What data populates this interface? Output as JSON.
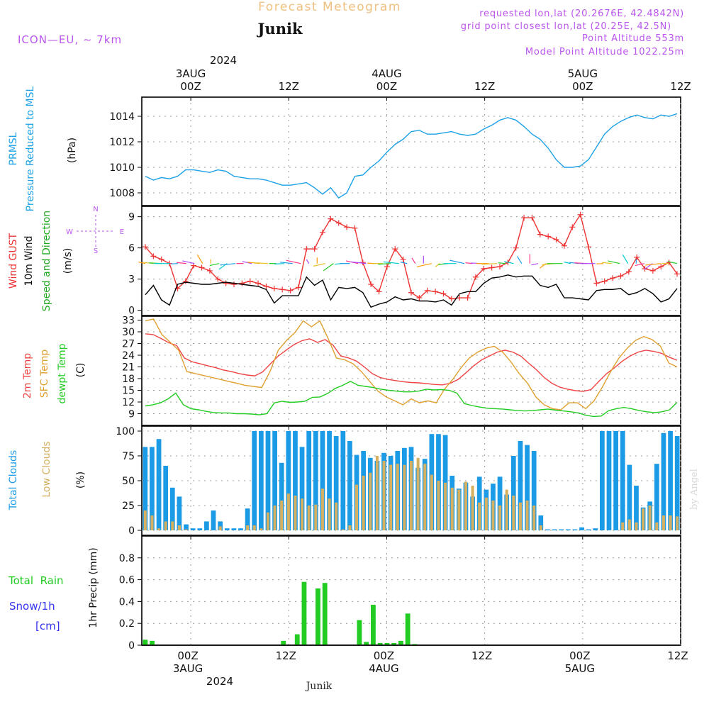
{
  "header": {
    "title": "Forecast Meteogram",
    "location": "Junik",
    "model": "ICON—EU, ~ 7km",
    "requested": "requested lon,lat (20.2676E, 42.4842N)",
    "grid_point": "grid point closest lon,lat (20.25E, 42.5N)",
    "point_altitude": "Point Altitude 553m",
    "model_altitude": "Model Point Altitude 1022.25m",
    "credit": "by Angel",
    "footer_location": "Junik"
  },
  "time_axis": {
    "hours_total": 66,
    "top_year": "2024",
    "bottom_year": "2024",
    "ticks": [
      {
        "hour": 6,
        "label": "00Z",
        "date": "3AUG"
      },
      {
        "hour": 18,
        "label": "12Z",
        "date": ""
      },
      {
        "hour": 30,
        "label": "00Z",
        "date": "4AUG"
      },
      {
        "hour": 42,
        "label": "12Z",
        "date": ""
      },
      {
        "hour": 54,
        "label": "00Z",
        "date": "5AUG"
      },
      {
        "hour": 66,
        "label": "12Z",
        "date": ""
      }
    ]
  },
  "colors": {
    "pressure": "#1da1e6",
    "gust": "#ee3333",
    "wind": "#000000",
    "temp": "#ee4444",
    "sfc": "#e0a030",
    "dewpt": "#22cc22",
    "total_clouds": "#1b9ae6",
    "low_clouds": "#d4b060",
    "rain": "#22cc22",
    "snow": "#3333ee",
    "accent": "#bb55ee",
    "title": "#f0c080"
  },
  "chart_data": [
    {
      "type": "line",
      "panel": "pressure",
      "ylabel_lines": [
        "PRMSL",
        "Pressure Reduced to MSL"
      ],
      "unit": "(hPa)",
      "ylim": [
        1007,
        1015.5
      ],
      "yticks": [
        1008,
        1010,
        1012,
        1014
      ],
      "series": [
        {
          "name": "PRMSL",
          "values": [
            1009.3,
            1009.0,
            1009.2,
            1009.1,
            1009.3,
            1009.8,
            1009.8,
            1009.7,
            1009.6,
            1009.8,
            1009.7,
            1009.3,
            1009.2,
            1009.1,
            1009.1,
            1009.0,
            1008.8,
            1008.6,
            1008.6,
            1008.7,
            1008.8,
            1008.4,
            1007.9,
            1008.4,
            1007.6,
            1008.0,
            1009.3,
            1009.4,
            1010.0,
            1010.5,
            1011.2,
            1011.8,
            1012.2,
            1012.8,
            1012.9,
            1012.6,
            1012.6,
            1012.7,
            1012.8,
            1012.6,
            1012.5,
            1012.6,
            1013.0,
            1013.3,
            1013.7,
            1013.9,
            1013.7,
            1013.2,
            1012.6,
            1012.2,
            1011.5,
            1010.6,
            1010.0,
            1010.0,
            1010.1,
            1010.6,
            1011.6,
            1012.6,
            1013.2,
            1013.6,
            1013.9,
            1014.1,
            1013.9,
            1013.8,
            1014.1,
            1014.0,
            1014.2
          ]
        }
      ]
    },
    {
      "type": "line",
      "panel": "wind",
      "ylabel_lines": [
        "Wind GUST",
        "10m Wind",
        "Speed and Direction"
      ],
      "unit": "(m/s)",
      "compass": {
        "n": "N",
        "s": "S",
        "w": "W",
        "e": "E"
      },
      "ylim": [
        -0.5,
        10
      ],
      "yticks": [
        0,
        3,
        6,
        9
      ],
      "series": [
        {
          "name": "Wind GUST",
          "values": [
            6.1,
            5.2,
            4.9,
            4.5,
            2.1,
            2.8,
            4.3,
            4.1,
            3.8,
            3.0,
            2.6,
            2.5,
            2.6,
            2.8,
            2.6,
            2.3,
            2.1,
            2.0,
            1.9,
            2.2,
            5.9,
            5.9,
            7.5,
            8.8,
            8.4,
            8.0,
            7.9,
            4.6,
            2.5,
            1.8,
            4.2,
            5.9,
            4.9,
            1.7,
            1.2,
            1.9,
            1.8,
            1.6,
            1.1,
            1.2,
            1.2,
            3.2,
            4.0,
            4.1,
            4.2,
            4.6,
            6.0,
            8.9,
            8.9,
            7.3,
            7.1,
            6.8,
            6.2,
            8.0,
            9.2,
            6.1,
            2.6,
            2.8,
            3.1,
            3.3,
            3.7,
            5.1,
            4.0,
            3.8,
            4.2,
            4.6,
            3.5
          ]
        },
        {
          "name": "10m Wind",
          "values": [
            1.5,
            2.4,
            1.0,
            0.5,
            2.5,
            2.7,
            2.6,
            2.5,
            2.5,
            2.6,
            2.7,
            2.6,
            2.5,
            2.4,
            2.3,
            2.0,
            0.7,
            1.4,
            1.4,
            1.4,
            3.2,
            2.4,
            2.9,
            1.0,
            2.2,
            2.1,
            2.2,
            1.7,
            0.3,
            0.6,
            0.8,
            1.3,
            1.0,
            1.1,
            0.9,
            0.9,
            0.8,
            1.0,
            0.5,
            1.6,
            1.8,
            1.8,
            2.6,
            3.1,
            3.2,
            3.4,
            3.2,
            3.3,
            3.3,
            2.4,
            2.2,
            2.5,
            1.2,
            1.2,
            1.1,
            1.0,
            1.9,
            2.0,
            2.0,
            2.1,
            1.5,
            1.7,
            2.1,
            1.6,
            0.8,
            1.1,
            2.1
          ]
        }
      ]
    },
    {
      "type": "line",
      "panel": "temperature",
      "ylabel_lines": [
        "2m Temp",
        "SFC Temp",
        "dewpt Temp"
      ],
      "unit": "(C)",
      "ylim": [
        6,
        34
      ],
      "yticks": [
        9,
        12,
        15,
        18,
        21,
        24,
        27,
        30,
        33
      ],
      "series": [
        {
          "name": "2m Temp",
          "values": [
            29.5,
            29.3,
            28.3,
            27.2,
            26.5,
            23.3,
            22.3,
            21.8,
            21.3,
            20.8,
            20.2,
            19.8,
            19.3,
            18.9,
            18.7,
            19.7,
            21.8,
            23.8,
            25.3,
            26.7,
            27.7,
            28.2,
            27.3,
            28.0,
            26.6,
            23.8,
            23.3,
            22.5,
            21.0,
            19.3,
            18.3,
            17.8,
            17.5,
            17.2,
            17.0,
            16.9,
            16.7,
            16.5,
            16.4,
            16.8,
            17.8,
            19.5,
            21.3,
            22.8,
            23.8,
            24.8,
            25.3,
            24.8,
            23.8,
            22.0,
            20.3,
            18.3,
            16.8,
            15.8,
            15.3,
            14.9,
            14.7,
            15.2,
            17.3,
            19.3,
            20.8,
            22.5,
            23.8,
            24.8,
            25.3,
            25.0,
            24.5,
            23.5,
            22.7
          ]
        },
        {
          "name": "SFC Temp",
          "values": [
            32.8,
            33.3,
            29.3,
            27.3,
            25.3,
            19.8,
            19.3,
            18.8,
            18.3,
            17.8,
            17.3,
            16.8,
            16.3,
            16.0,
            15.7,
            19.8,
            25.3,
            27.8,
            29.8,
            32.8,
            31.3,
            32.8,
            28.3,
            23.3,
            22.8,
            21.8,
            19.8,
            17.3,
            14.8,
            13.3,
            12.3,
            11.3,
            12.8,
            11.8,
            12.3,
            11.8,
            15.3,
            17.8,
            20.8,
            23.3,
            24.8,
            25.8,
            26.3,
            24.8,
            22.3,
            19.3,
            16.8,
            13.3,
            11.3,
            10.3,
            10.0,
            11.8,
            11.8,
            10.3,
            12.3,
            15.8,
            19.8,
            23.3,
            25.8,
            27.8,
            28.8,
            28.0,
            26.3,
            22.0,
            21.0
          ]
        },
        {
          "name": "dewpt Temp",
          "values": [
            11.0,
            11.3,
            11.8,
            12.8,
            14.3,
            11.3,
            10.3,
            10.0,
            9.6,
            9.3,
            9.2,
            9.2,
            9.0,
            9.0,
            8.9,
            8.7,
            9.0,
            11.8,
            12.2,
            11.9,
            12.0,
            12.2,
            13.2,
            13.3,
            14.2,
            15.5,
            16.3,
            17.3,
            16.3,
            16.0,
            15.7,
            15.3,
            15.0,
            14.8,
            14.6,
            14.6,
            14.8,
            15.3,
            15.1,
            15.2,
            15.0,
            14.3,
            11.6,
            11.1,
            10.7,
            10.4,
            10.3,
            10.2,
            10.0,
            9.8,
            9.7,
            9.8,
            10.0,
            10.2,
            9.9,
            9.7,
            9.5,
            9.2,
            8.6,
            8.3,
            8.4,
            9.8,
            10.3,
            10.6,
            10.3,
            9.8,
            9.5,
            9.3,
            9.5,
            10.0,
            11.9
          ]
        }
      ]
    },
    {
      "type": "bar",
      "panel": "clouds",
      "ylabel_lines": [
        "Total Clouds",
        "Low Clouds"
      ],
      "unit": "(%)",
      "ylim": [
        -5,
        105
      ],
      "yticks": [
        0,
        25,
        50,
        75,
        100
      ],
      "series": [
        {
          "name": "Total Clouds",
          "values": [
            84,
            84,
            92,
            65,
            43,
            34,
            6,
            2,
            2,
            9,
            20,
            9,
            2,
            2,
            2,
            22,
            100,
            100,
            100,
            100,
            68,
            100,
            100,
            84,
            100,
            100,
            100,
            100,
            95,
            100,
            90,
            76,
            80,
            73,
            70,
            78,
            75,
            80,
            83,
            84,
            63,
            72,
            97,
            97,
            96,
            55,
            42,
            48,
            34,
            54,
            41,
            47,
            54,
            36,
            75,
            90,
            86,
            80,
            15,
            1,
            1,
            1,
            1,
            1,
            3,
            1,
            2,
            100,
            100,
            100,
            100,
            66,
            45,
            23,
            29,
            67,
            98,
            100,
            95
          ]
        },
        {
          "name": "Low Clouds",
          "values": [
            20,
            15,
            2,
            9,
            9,
            5,
            1,
            0,
            0,
            0,
            0,
            4,
            0,
            0,
            0,
            5,
            5,
            2,
            18,
            25,
            30,
            37,
            35,
            32,
            25,
            26,
            42,
            32,
            28,
            1,
            5,
            46,
            55,
            58,
            75,
            70,
            66,
            67,
            66,
            70,
            73,
            67,
            56,
            50,
            48,
            43,
            41,
            49,
            45,
            28,
            33,
            30,
            25,
            41,
            35,
            28,
            30,
            25,
            5,
            0,
            0,
            0,
            0,
            0,
            0,
            0,
            0,
            0,
            0,
            0,
            8,
            11,
            8,
            22,
            25,
            8,
            15,
            15,
            14
          ]
        }
      ]
    },
    {
      "type": "bar",
      "panel": "precip",
      "label_total_rain": "Total  Rain",
      "label_snow": "Snow/1h",
      "label_cm": "[cm]",
      "ylabel": "1hr Precip (mm)",
      "ylim": [
        0,
        1.0
      ],
      "yticks": [
        0,
        0.2,
        0.4,
        0.6,
        0.8
      ],
      "series": [
        {
          "name": "Total Rain",
          "values": [
            0.05,
            0.04,
            0,
            0,
            0,
            0,
            0,
            0,
            0,
            0,
            0,
            0,
            0,
            0,
            0,
            0,
            0,
            0,
            0,
            0,
            0.04,
            0,
            0.1,
            0.58,
            0,
            0.52,
            0.57,
            0,
            0,
            0,
            0,
            0.23,
            0.03,
            0.37,
            0.02,
            0.02,
            0.02,
            0.04,
            0.29,
            0.01,
            0,
            0,
            0,
            0,
            0,
            0,
            0,
            0,
            0,
            0,
            0,
            0,
            0,
            0,
            0,
            0,
            0,
            0,
            0,
            0,
            0,
            0,
            0,
            0,
            0,
            0,
            0,
            0,
            0,
            0,
            0,
            0,
            0,
            0,
            0,
            0,
            0,
            0
          ]
        }
      ]
    }
  ]
}
